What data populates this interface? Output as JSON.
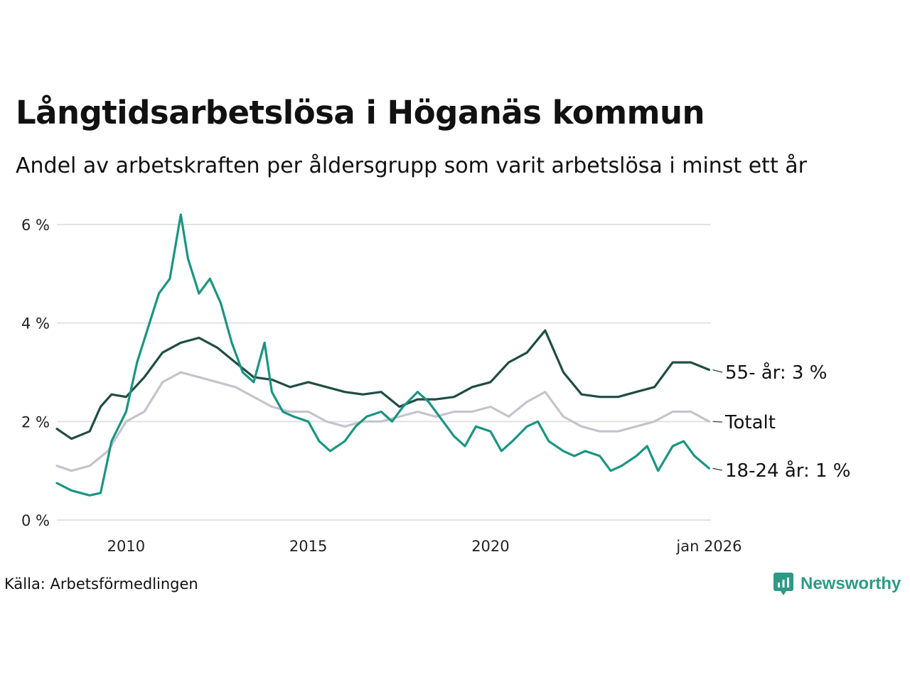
{
  "title": "Långtidsarbetslösa i Höganäs kommun",
  "subtitle": "Andel av arbetskraften per åldersgrupp som varit arbetslösa i minst ett år",
  "source": "Källa: Arbetsförmedlingen",
  "brand": "Newsworthy",
  "chart_data": {
    "type": "line",
    "ylim": [
      0,
      6.25
    ],
    "xlim": [
      2008.1,
      2026.05
    ],
    "yticks": [
      {
        "value": 0,
        "label": "0 %"
      },
      {
        "value": 2,
        "label": "2 %"
      },
      {
        "value": 4,
        "label": "4 %"
      },
      {
        "value": 6,
        "label": "6 %"
      }
    ],
    "xticks": [
      {
        "value": 2010,
        "label": "2010"
      },
      {
        "value": 2015,
        "label": "2015"
      },
      {
        "value": 2020,
        "label": "2020"
      },
      {
        "value": 2026,
        "label": "jan 2026"
      }
    ],
    "grid": true,
    "series": [
      {
        "name": "Totalt",
        "label": "Totalt",
        "color": "#c6c3cd",
        "x": [
          2008.1,
          2008.5,
          2009,
          2009.5,
          2010,
          2010.5,
          2011,
          2011.5,
          2012,
          2012.5,
          2013,
          2013.5,
          2014,
          2014.5,
          2015,
          2015.5,
          2016,
          2016.5,
          2017,
          2017.5,
          2018,
          2018.5,
          2019,
          2019.5,
          2020,
          2020.5,
          2021,
          2021.5,
          2022,
          2022.5,
          2023,
          2023.5,
          2024,
          2024.5,
          2025,
          2025.5,
          2026
        ],
        "values": [
          1.1,
          1.0,
          1.1,
          1.4,
          2.0,
          2.2,
          2.8,
          3.0,
          2.9,
          2.8,
          2.7,
          2.5,
          2.3,
          2.2,
          2.2,
          2.0,
          1.9,
          2.0,
          2.0,
          2.1,
          2.2,
          2.1,
          2.2,
          2.2,
          2.3,
          2.1,
          2.4,
          2.6,
          2.1,
          1.9,
          1.8,
          1.8,
          1.9,
          2.0,
          2.2,
          2.2,
          2.0
        ]
      },
      {
        "name": "55- år",
        "label": "55- år: 3 %",
        "color": "#1f4d44",
        "x": [
          2008.1,
          2008.5,
          2009,
          2009.3,
          2009.6,
          2010,
          2010.5,
          2011,
          2011.5,
          2012,
          2012.5,
          2013,
          2013.5,
          2014,
          2014.5,
          2015,
          2015.5,
          2016,
          2016.5,
          2017,
          2017.5,
          2018,
          2018.5,
          2019,
          2019.5,
          2020,
          2020.5,
          2021,
          2021.5,
          2022,
          2022.5,
          2023,
          2023.5,
          2024,
          2024.5,
          2025,
          2025.5,
          2026
        ],
        "values": [
          1.85,
          1.65,
          1.8,
          2.3,
          2.55,
          2.5,
          2.9,
          3.4,
          3.6,
          3.7,
          3.5,
          3.2,
          2.9,
          2.85,
          2.7,
          2.8,
          2.7,
          2.6,
          2.55,
          2.6,
          2.3,
          2.45,
          2.45,
          2.5,
          2.7,
          2.8,
          3.2,
          3.4,
          3.85,
          3.0,
          2.55,
          2.5,
          2.5,
          2.6,
          2.7,
          3.2,
          3.2,
          3.05
        ]
      },
      {
        "name": "18-24 år",
        "label": "18-24 år: 1 %",
        "color": "#1a9580",
        "x": [
          2008.1,
          2008.5,
          2009,
          2009.3,
          2009.6,
          2010,
          2010.3,
          2010.6,
          2010.9,
          2011.2,
          2011.5,
          2011.7,
          2012,
          2012.3,
          2012.6,
          2012.9,
          2013.2,
          2013.5,
          2013.8,
          2014,
          2014.3,
          2014.6,
          2015,
          2015.3,
          2015.6,
          2016,
          2016.3,
          2016.6,
          2017,
          2017.3,
          2017.6,
          2018,
          2018.3,
          2018.6,
          2019,
          2019.3,
          2019.6,
          2020,
          2020.3,
          2020.6,
          2021,
          2021.3,
          2021.6,
          2022,
          2022.3,
          2022.6,
          2023,
          2023.3,
          2023.6,
          2024,
          2024.3,
          2024.6,
          2025,
          2025.3,
          2025.6,
          2026
        ],
        "values": [
          0.75,
          0.6,
          0.5,
          0.55,
          1.6,
          2.2,
          3.2,
          3.9,
          4.6,
          4.9,
          6.2,
          5.3,
          4.6,
          4.9,
          4.4,
          3.6,
          3.0,
          2.8,
          3.6,
          2.6,
          2.2,
          2.1,
          2.0,
          1.6,
          1.4,
          1.6,
          1.9,
          2.1,
          2.2,
          2.0,
          2.3,
          2.6,
          2.4,
          2.1,
          1.7,
          1.5,
          1.9,
          1.8,
          1.4,
          1.6,
          1.9,
          2.0,
          1.6,
          1.4,
          1.3,
          1.4,
          1.3,
          1.0,
          1.1,
          1.3,
          1.5,
          1.0,
          1.5,
          1.6,
          1.3,
          1.05
        ]
      }
    ]
  }
}
